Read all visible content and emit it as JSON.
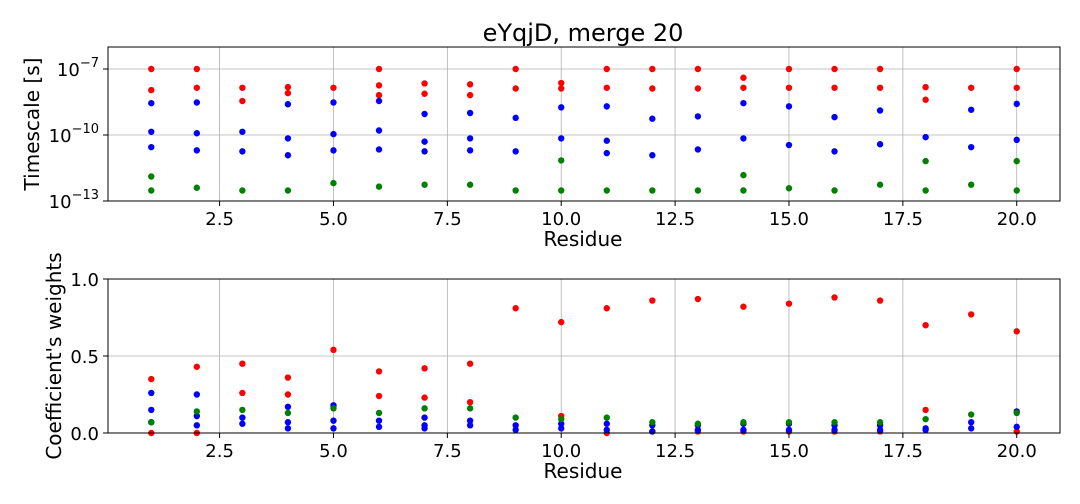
{
  "chart_data": [
    {
      "type": "scatter",
      "title": "eYqjD, merge 20",
      "xlabel": "Residue",
      "ylabel": "Timescale [s]",
      "yscale": "log",
      "xlim": [
        0.05,
        20.95
      ],
      "ylim": [
        1e-13,
        1e-06
      ],
      "xticks": [
        2.5,
        5.0,
        7.5,
        10.0,
        12.5,
        15.0,
        17.5,
        20.0
      ],
      "xtick_labels": [
        "2.5",
        "5.0",
        "7.5",
        "10.0",
        "12.5",
        "15.0",
        "17.5",
        "20.0"
      ],
      "yticks": [
        1e-13,
        1e-10,
        1e-07
      ],
      "ytick_labels": [
        {
          "base": "10",
          "exp": "−13"
        },
        {
          "base": "10",
          "exp": "−10"
        },
        {
          "base": "10",
          "exp": "−7"
        }
      ],
      "grid": true,
      "x": [
        1,
        2,
        3,
        4,
        5,
        6,
        7,
        8,
        9,
        10,
        11,
        12,
        13,
        14,
        15,
        16,
        17,
        18,
        19,
        20
      ],
      "series": [
        {
          "color": "#ff0000",
          "points": [
            [
              1,
              1e-07
            ],
            [
              1,
              1.1e-08
            ],
            [
              2,
              1e-07
            ],
            [
              2,
              1.4e-08
            ],
            [
              3,
              1.4e-08
            ],
            [
              3,
              3.5e-09
            ],
            [
              4,
              1.5e-08
            ],
            [
              4,
              8e-09
            ],
            [
              5,
              1.4e-08
            ],
            [
              6,
              1e-07
            ],
            [
              6,
              1.8e-08
            ],
            [
              6,
              6.5e-09
            ],
            [
              7,
              2.2e-08
            ],
            [
              7,
              7.5e-09
            ],
            [
              8,
              2e-08
            ],
            [
              8,
              6.5e-09
            ],
            [
              9,
              1e-07
            ],
            [
              9,
              1.3e-08
            ],
            [
              10,
              2.3e-08
            ],
            [
              10,
              1.3e-08
            ],
            [
              11,
              1e-07
            ],
            [
              11,
              1.4e-08
            ],
            [
              12,
              1e-07
            ],
            [
              12,
              1.3e-08
            ],
            [
              13,
              1e-07
            ],
            [
              13,
              1.3e-08
            ],
            [
              14,
              4e-08
            ],
            [
              14,
              1.4e-08
            ],
            [
              15,
              1e-07
            ],
            [
              15,
              1.4e-08
            ],
            [
              16,
              1e-07
            ],
            [
              16,
              1.4e-08
            ],
            [
              17,
              1e-07
            ],
            [
              17,
              1.4e-08
            ],
            [
              18,
              1.5e-08
            ],
            [
              18,
              4e-09
            ],
            [
              19,
              1.4e-08
            ],
            [
              20,
              1e-07
            ],
            [
              20,
              1.4e-08
            ]
          ]
        },
        {
          "color": "#0000ff",
          "points": [
            [
              1,
              2.8e-09
            ],
            [
              1,
              1.4e-10
            ],
            [
              1,
              2.8e-11
            ],
            [
              2,
              3e-09
            ],
            [
              2,
              1.2e-10
            ],
            [
              2,
              2e-11
            ],
            [
              3,
              1.4e-10
            ],
            [
              3,
              1.8e-11
            ],
            [
              4,
              2.5e-09
            ],
            [
              4,
              7e-11
            ],
            [
              4,
              1.2e-11
            ],
            [
              5,
              3e-09
            ],
            [
              5,
              1.1e-10
            ],
            [
              5,
              2e-11
            ],
            [
              6,
              3.5e-09
            ],
            [
              6,
              1.6e-10
            ],
            [
              6,
              2.2e-11
            ],
            [
              7,
              9e-10
            ],
            [
              7,
              5e-11
            ],
            [
              7,
              1.8e-11
            ],
            [
              8,
              1e-09
            ],
            [
              8,
              7e-11
            ],
            [
              8,
              2e-11
            ],
            [
              9,
              6e-10
            ],
            [
              9,
              1.8e-11
            ],
            [
              10,
              1.8e-09
            ],
            [
              10,
              7e-11
            ],
            [
              11,
              2e-09
            ],
            [
              11,
              5.5e-11
            ],
            [
              11,
              1.5e-11
            ],
            [
              12,
              5.5e-10
            ],
            [
              12,
              1.2e-11
            ],
            [
              13,
              7e-10
            ],
            [
              13,
              2.2e-11
            ],
            [
              14,
              2.8e-09
            ],
            [
              14,
              7e-11
            ],
            [
              15,
              2e-09
            ],
            [
              15,
              3.5e-11
            ],
            [
              16,
              6.5e-10
            ],
            [
              16,
              1.8e-11
            ],
            [
              17,
              1.3e-09
            ],
            [
              17,
              3.8e-11
            ],
            [
              18,
              8e-11
            ],
            [
              19,
              1.4e-09
            ],
            [
              19,
              2.8e-11
            ],
            [
              20,
              2.6e-09
            ],
            [
              20,
              6e-11
            ]
          ]
        },
        {
          "color": "#008000",
          "points": [
            [
              1,
              1.3e-12
            ],
            [
              1,
              3e-13
            ],
            [
              2,
              4e-13
            ],
            [
              3,
              3e-13
            ],
            [
              4,
              3e-13
            ],
            [
              5,
              6.5e-13
            ],
            [
              6,
              4.5e-13
            ],
            [
              7,
              5.5e-13
            ],
            [
              8,
              5.5e-13
            ],
            [
              9,
              3e-13
            ],
            [
              10,
              7e-12
            ],
            [
              10,
              3e-13
            ],
            [
              11,
              3e-13
            ],
            [
              12,
              3e-13
            ],
            [
              13,
              3e-13
            ],
            [
              14,
              1.5e-12
            ],
            [
              14,
              3e-13
            ],
            [
              15,
              3.8e-13
            ],
            [
              16,
              3e-13
            ],
            [
              17,
              5.5e-13
            ],
            [
              18,
              6.5e-12
            ],
            [
              18,
              3e-13
            ],
            [
              19,
              5.5e-13
            ],
            [
              20,
              6.5e-12
            ],
            [
              20,
              3e-13
            ]
          ]
        }
      ]
    },
    {
      "type": "scatter",
      "xlabel": "Residue",
      "ylabel": "Coefficient's weights",
      "xlim": [
        0.05,
        20.95
      ],
      "ylim": [
        0,
        1.0
      ],
      "xticks": [
        2.5,
        5.0,
        7.5,
        10.0,
        12.5,
        15.0,
        17.5,
        20.0
      ],
      "xtick_labels": [
        "2.5",
        "5.0",
        "7.5",
        "10.0",
        "12.5",
        "15.0",
        "17.5",
        "20.0"
      ],
      "yticks": [
        0,
        0.5,
        1.0
      ],
      "ytick_labels": [
        "0.0",
        "0.5",
        "1.0"
      ],
      "grid": true,
      "series": [
        {
          "color": "#ff0000",
          "points": [
            [
              1,
              0.35
            ],
            [
              1,
              0.0
            ],
            [
              2,
              0.43
            ],
            [
              2,
              0.0
            ],
            [
              3,
              0.45
            ],
            [
              3,
              0.26
            ],
            [
              4,
              0.36
            ],
            [
              4,
              0.25
            ],
            [
              5,
              0.54
            ],
            [
              5,
              0.17
            ],
            [
              6,
              0.4
            ],
            [
              6,
              0.24
            ],
            [
              7,
              0.42
            ],
            [
              7,
              0.23
            ],
            [
              8,
              0.45
            ],
            [
              8,
              0.2
            ],
            [
              9,
              0.81
            ],
            [
              10,
              0.72
            ],
            [
              10,
              0.11
            ],
            [
              11,
              0.81
            ],
            [
              11,
              0.0
            ],
            [
              12,
              0.86
            ],
            [
              12,
              0.01
            ],
            [
              13,
              0.87
            ],
            [
              13,
              0.01
            ],
            [
              14,
              0.82
            ],
            [
              14,
              0.01
            ],
            [
              15,
              0.84
            ],
            [
              15,
              0.01
            ],
            [
              16,
              0.88
            ],
            [
              16,
              0.01
            ],
            [
              17,
              0.86
            ],
            [
              17,
              0.01
            ],
            [
              18,
              0.7
            ],
            [
              18,
              0.15
            ],
            [
              19,
              0.77
            ],
            [
              20,
              0.66
            ],
            [
              20,
              0.01
            ]
          ]
        },
        {
          "color": "#0000ff",
          "points": [
            [
              1,
              0.26
            ],
            [
              1,
              0.15
            ],
            [
              1,
              0.07
            ],
            [
              2,
              0.25
            ],
            [
              2,
              0.11
            ],
            [
              2,
              0.05
            ],
            [
              3,
              0.1
            ],
            [
              3,
              0.06
            ],
            [
              4,
              0.17
            ],
            [
              4,
              0.07
            ],
            [
              4,
              0.03
            ],
            [
              5,
              0.18
            ],
            [
              5,
              0.08
            ],
            [
              5,
              0.03
            ],
            [
              6,
              0.08
            ],
            [
              6,
              0.04
            ],
            [
              7,
              0.1
            ],
            [
              7,
              0.05
            ],
            [
              7,
              0.03
            ],
            [
              8,
              0.08
            ],
            [
              8,
              0.05
            ],
            [
              9,
              0.05
            ],
            [
              9,
              0.02
            ],
            [
              10,
              0.06
            ],
            [
              10,
              0.03
            ],
            [
              11,
              0.06
            ],
            [
              11,
              0.02
            ],
            [
              12,
              0.05
            ],
            [
              12,
              0.01
            ],
            [
              13,
              0.05
            ],
            [
              13,
              0.02
            ],
            [
              14,
              0.06
            ],
            [
              14,
              0.02
            ],
            [
              15,
              0.06
            ],
            [
              15,
              0.02
            ],
            [
              16,
              0.05
            ],
            [
              16,
              0.02
            ],
            [
              17,
              0.05
            ],
            [
              17,
              0.02
            ],
            [
              18,
              0.03
            ],
            [
              18,
              0.02
            ],
            [
              19,
              0.07
            ],
            [
              19,
              0.03
            ],
            [
              20,
              0.14
            ],
            [
              20,
              0.04
            ]
          ]
        },
        {
          "color": "#008000",
          "points": [
            [
              1,
              0.07
            ],
            [
              2,
              0.14
            ],
            [
              3,
              0.15
            ],
            [
              4,
              0.13
            ],
            [
              5,
              0.16
            ],
            [
              6,
              0.13
            ],
            [
              7,
              0.16
            ],
            [
              8,
              0.16
            ],
            [
              9,
              0.1
            ],
            [
              10,
              0.09
            ],
            [
              11,
              0.1
            ],
            [
              12,
              0.07
            ],
            [
              13,
              0.06
            ],
            [
              14,
              0.07
            ],
            [
              15,
              0.07
            ],
            [
              16,
              0.07
            ],
            [
              17,
              0.07
            ],
            [
              18,
              0.09
            ],
            [
              19,
              0.12
            ],
            [
              20,
              0.13
            ]
          ]
        }
      ]
    }
  ]
}
